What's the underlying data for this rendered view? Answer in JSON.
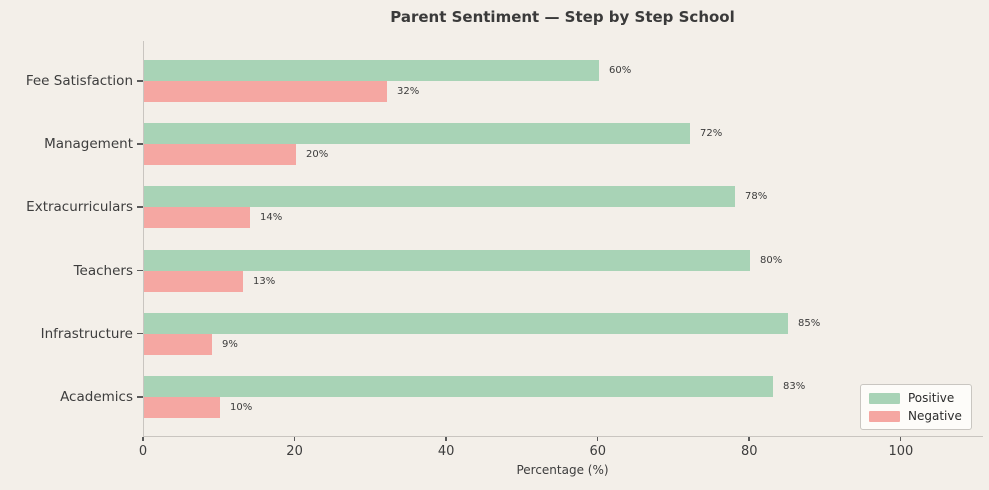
{
  "figure": {
    "background": "#f3efe9"
  },
  "chart_data": {
    "type": "bar",
    "orientation": "horizontal",
    "title": "Parent Sentiment — Step by Step School",
    "xlabel": "Percentage (%)",
    "categories": [
      "Fee Satisfaction",
      "Management",
      "Extracurriculars",
      "Teachers",
      "Infrastructure",
      "Academics"
    ],
    "series": [
      {
        "name": "Positive",
        "color": "#a8d3b6",
        "values": [
          60,
          72,
          78,
          80,
          85,
          83
        ]
      },
      {
        "name": "Negative",
        "color": "#f5a7a2",
        "values": [
          32,
          20,
          14,
          13,
          9,
          10
        ]
      }
    ],
    "value_label_suffix": "%",
    "value_labels": {
      "Positive": [
        "60%",
        "72%",
        "78%",
        "80%",
        "85%",
        "83%"
      ],
      "Negative": [
        "32%",
        "20%",
        "14%",
        "13%",
        "9%",
        "10%"
      ]
    },
    "xticks": [
      0,
      20,
      40,
      60,
      80,
      100
    ],
    "xlim": [
      0,
      110.7
    ],
    "grid": false,
    "legend": {
      "position": "lower right",
      "entries": [
        "Positive",
        "Negative"
      ]
    }
  }
}
